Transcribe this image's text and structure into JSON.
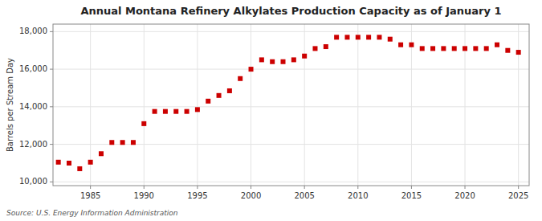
{
  "chart_data": {
    "type": "scatter",
    "title": "Annual Montana Refinery Alkylates Production Capacity as of January 1",
    "y_label": "Barrels per Stream Day",
    "annotations": [
      "Source: U.S. Energy Information Administration"
    ],
    "color": "#cc0000",
    "marker": "square",
    "grid": true,
    "xlim": [
      1981.5,
      2026
    ],
    "ylim": [
      9800,
      18400
    ],
    "xticks": [
      1985,
      1990,
      1995,
      2000,
      2005,
      2010,
      2015,
      2020,
      2025
    ],
    "yticks": [
      {
        "value": 10000,
        "label": "10,000"
      },
      {
        "value": 12000,
        "label": "12,000"
      },
      {
        "value": 14000,
        "label": "14,000"
      },
      {
        "value": 16000,
        "label": "16,000"
      },
      {
        "value": 18000,
        "label": "18,000"
      }
    ],
    "x": [
      1982,
      1983,
      1984,
      1985,
      1986,
      1987,
      1988,
      1989,
      1990,
      1991,
      1992,
      1993,
      1994,
      1995,
      1996,
      1997,
      1998,
      1999,
      2000,
      2001,
      2002,
      2003,
      2004,
      2005,
      2006,
      2007,
      2008,
      2009,
      2010,
      2011,
      2012,
      2013,
      2014,
      2015,
      2016,
      2017,
      2018,
      2019,
      2020,
      2021,
      2022,
      2023,
      2024,
      2025
    ],
    "values": [
      11050,
      11000,
      10700,
      11050,
      11500,
      12100,
      12100,
      12100,
      13100,
      13750,
      13750,
      13750,
      13750,
      13850,
      14300,
      14600,
      14850,
      15500,
      16000,
      16500,
      16400,
      16400,
      16500,
      16700,
      17100,
      17200,
      17700,
      17700,
      17700,
      17700,
      17700,
      17600,
      17300,
      17300,
      17100,
      17100,
      17100,
      17100,
      17100,
      17100,
      17100,
      17300,
      17000,
      16900
    ]
  }
}
